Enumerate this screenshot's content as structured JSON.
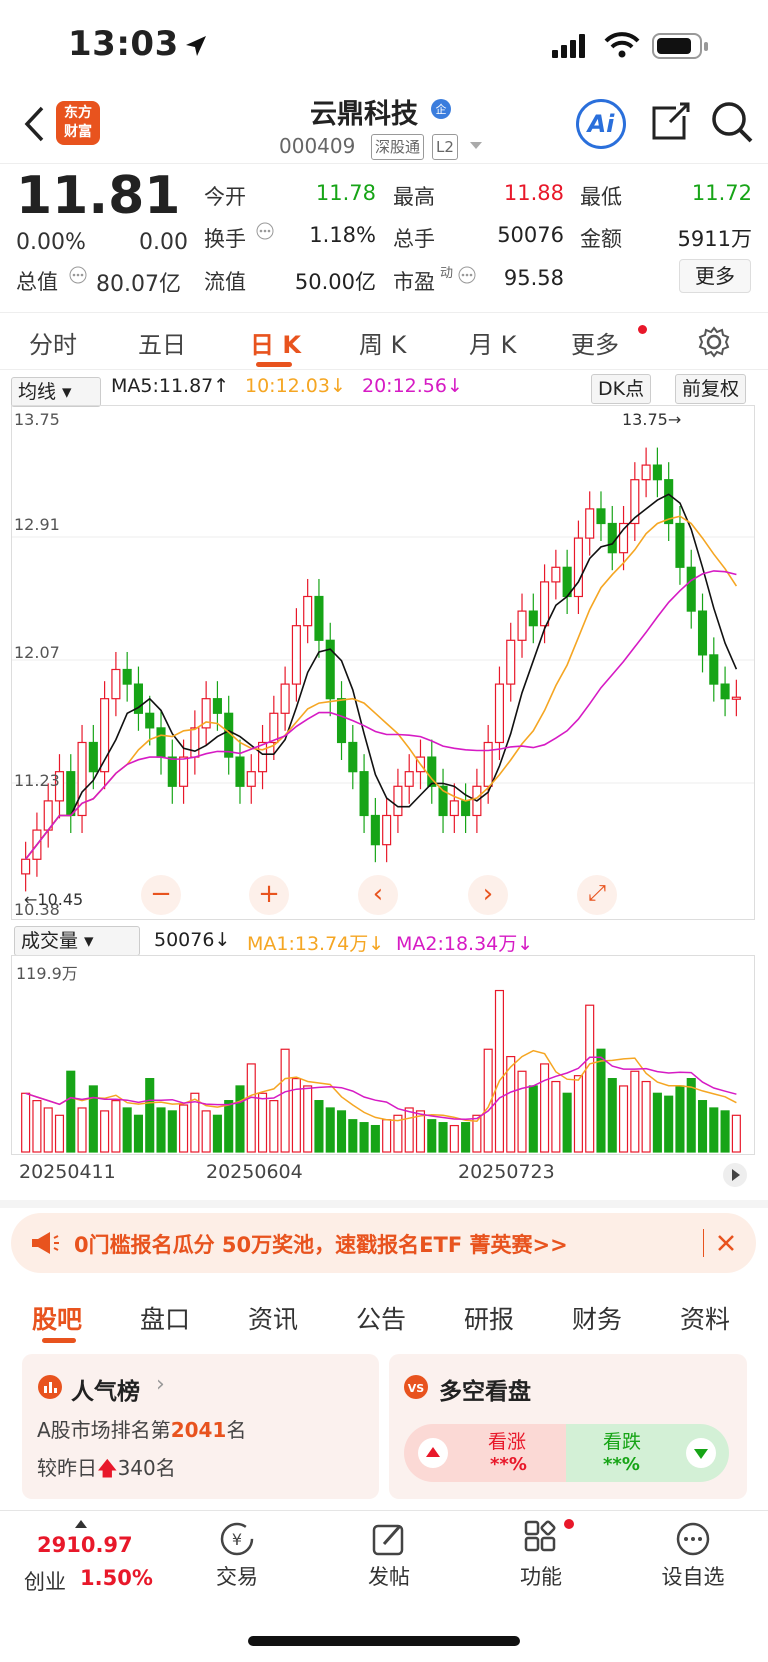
{
  "status_bar": {
    "time": "13:03"
  },
  "header": {
    "logo_text_1": "东方",
    "logo_text_2": "财富",
    "stock_name": "云鼎科技",
    "stock_code": "000409",
    "tag_connect": "深股通",
    "tag_level": "L2",
    "ai_label": "Ai"
  },
  "quote": {
    "price": "11.81",
    "change_pct": "0.00%",
    "change": "0.00",
    "rows": [
      [
        {
          "label": "今开",
          "value": "11.78",
          "color": "green"
        },
        {
          "label": "最高",
          "value": "11.88",
          "color": "red"
        },
        {
          "label": "最低",
          "value": "11.72",
          "color": "green"
        }
      ],
      [
        {
          "label": "换手",
          "value": "1.18%",
          "color": "none"
        },
        {
          "label": "总手",
          "value": "50076",
          "color": "none"
        },
        {
          "label": "金额",
          "value": "5911万",
          "color": "none"
        }
      ],
      [
        {
          "label": "流值",
          "value": "50.00亿",
          "color": "none"
        },
        {
          "label": "市盈",
          "value": "95.58",
          "color": "none"
        }
      ]
    ],
    "total_value_label": "总值",
    "total_value": "80.07亿",
    "pe_superscript": "动",
    "more_label": "更多"
  },
  "period_tabs": [
    "分时",
    "五日",
    "日 K",
    "周 K",
    "月 K",
    "更多"
  ],
  "active_period": "日 K",
  "ma_bar": {
    "selector": "均线",
    "ma5": "MA5:11.87",
    "ma10": "10:12.03",
    "ma20": "20:12.56",
    "dk_button": "DK点",
    "fq_button": "前复权"
  },
  "price_axis": {
    "top": "13.75",
    "l2": "12.91",
    "l3": "12.07",
    "l4": "11.23",
    "bottom": "10.38",
    "max_marker": "13.75",
    "min_marker": "10.45"
  },
  "volume_bar": {
    "selector": "成交量",
    "current": "50076",
    "ma1": "MA1:13.74万",
    "ma2": "MA2:18.34万",
    "axis_top": "119.9万"
  },
  "dates": [
    "20250411",
    "20250604",
    "20250723"
  ],
  "colors": {
    "accent": "#e8531e",
    "up": "#e8182a",
    "down": "#17a417",
    "ma5": "#111111",
    "ma10": "#f5a623",
    "ma20": "#d61bc4"
  },
  "chart_data": {
    "type": "candlestick",
    "ylim": [
      10.38,
      13.75
    ],
    "series": [
      {
        "name": "K",
        "values": [
          10.7,
          10.9,
          11.1,
          11.3,
          11.0,
          11.5,
          11.3,
          11.8,
          12.0,
          11.9,
          11.7,
          11.6,
          11.4,
          11.2,
          11.4,
          11.6,
          11.8,
          11.7,
          11.4,
          11.2,
          11.3,
          11.5,
          11.7,
          11.9,
          12.3,
          12.5,
          12.2,
          11.8,
          11.5,
          11.3,
          11.0,
          10.8,
          11.0,
          11.2,
          11.3,
          11.4,
          11.2,
          11.0,
          11.1,
          11.0,
          11.2,
          11.5,
          11.9,
          12.2,
          12.4,
          12.3,
          12.6,
          12.7,
          12.5,
          12.9,
          13.1,
          13.0,
          12.8,
          13.0,
          13.3,
          13.4,
          13.3,
          13.0,
          12.7,
          12.4,
          12.1,
          11.9,
          11.8,
          11.81
        ]
      }
    ],
    "volume_ylim": [
      0,
      119.9
    ],
    "volumes": [
      40,
      35,
      30,
      25,
      55,
      30,
      45,
      28,
      35,
      30,
      25,
      50,
      30,
      28,
      32,
      40,
      28,
      25,
      35,
      45,
      60,
      40,
      35,
      70,
      50,
      45,
      35,
      30,
      28,
      22,
      20,
      18,
      22,
      25,
      30,
      28,
      22,
      20,
      18,
      20,
      25,
      70,
      110,
      65,
      55,
      45,
      60,
      48,
      40,
      52,
      100,
      70,
      50,
      45,
      55,
      48,
      40,
      38,
      45,
      50,
      35,
      30,
      28,
      25
    ]
  },
  "banner": {
    "text": "0门槛报名瓜分 50万奖池，速戳报名ETF 菁英赛>>"
  },
  "news_tabs": [
    "股吧",
    "盘口",
    "资讯",
    "公告",
    "研报",
    "财务",
    "资料"
  ],
  "popularity": {
    "title": "人气榜",
    "rank_prefix": "A股市场排名第",
    "rank": "2041",
    "rank_suffix": "名",
    "change_prefix": "较昨日",
    "change": "340",
    "change_suffix": "名"
  },
  "longshort": {
    "title": "多空看盘",
    "up_label": "看涨",
    "up_value": "**%",
    "down_label": "看跌",
    "down_value": "**%"
  },
  "bottom_nav": {
    "index_value": "2910.97",
    "index_name": "创业",
    "index_change": "1.50%",
    "items": [
      "交易",
      "发帖",
      "功能",
      "设自选"
    ]
  }
}
